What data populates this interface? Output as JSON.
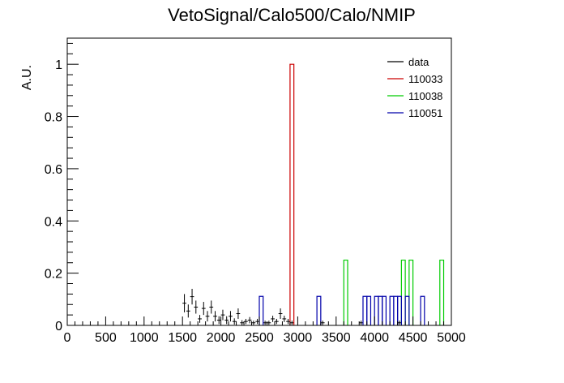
{
  "chart_data": {
    "type": "histogram",
    "title": "VetoSignal/Calo500/Calo/NMIP",
    "xlabel": "",
    "ylabel": "A.U.",
    "xlim": [
      0,
      5000
    ],
    "ylim": [
      0,
      1.1
    ],
    "bin_width": 50,
    "xticks": [
      0,
      500,
      1000,
      1500,
      2000,
      2500,
      3000,
      3500,
      4000,
      4500,
      5000
    ],
    "yticks": [
      0,
      0.2,
      0.4,
      0.6,
      0.8,
      1
    ],
    "grid": false,
    "legend_position": "top-right",
    "series": [
      {
        "name": "data",
        "color": "#000000",
        "style": "points-with-errors",
        "points": [
          {
            "x": 1525,
            "y": 0.085,
            "err": 0.035
          },
          {
            "x": 1575,
            "y": 0.055,
            "err": 0.025
          },
          {
            "x": 1625,
            "y": 0.11,
            "err": 0.03
          },
          {
            "x": 1675,
            "y": 0.07,
            "err": 0.025
          },
          {
            "x": 1725,
            "y": 0.025,
            "err": 0.015
          },
          {
            "x": 1775,
            "y": 0.065,
            "err": 0.025
          },
          {
            "x": 1825,
            "y": 0.035,
            "err": 0.02
          },
          {
            "x": 1875,
            "y": 0.07,
            "err": 0.025
          },
          {
            "x": 1925,
            "y": 0.035,
            "err": 0.02
          },
          {
            "x": 1975,
            "y": 0.02,
            "err": 0.015
          },
          {
            "x": 2025,
            "y": 0.04,
            "err": 0.02
          },
          {
            "x": 2075,
            "y": 0.02,
            "err": 0.015
          },
          {
            "x": 2125,
            "y": 0.035,
            "err": 0.02
          },
          {
            "x": 2175,
            "y": 0.015,
            "err": 0.012
          },
          {
            "x": 2225,
            "y": 0.045,
            "err": 0.02
          },
          {
            "x": 2275,
            "y": 0.01,
            "err": 0.01
          },
          {
            "x": 2325,
            "y": 0.015,
            "err": 0.01
          },
          {
            "x": 2375,
            "y": 0.02,
            "err": 0.012
          },
          {
            "x": 2425,
            "y": 0.01,
            "err": 0.008
          },
          {
            "x": 2475,
            "y": 0.015,
            "err": 0.01
          },
          {
            "x": 2575,
            "y": 0.01,
            "err": 0.008
          },
          {
            "x": 2625,
            "y": 0.01,
            "err": 0.008
          },
          {
            "x": 2675,
            "y": 0.025,
            "err": 0.012
          },
          {
            "x": 2725,
            "y": 0.015,
            "err": 0.01
          },
          {
            "x": 2775,
            "y": 0.045,
            "err": 0.02
          },
          {
            "x": 2825,
            "y": 0.025,
            "err": 0.012
          },
          {
            "x": 2875,
            "y": 0.015,
            "err": 0.01
          },
          {
            "x": 2925,
            "y": 0.01,
            "err": 0.008
          },
          {
            "x": 3325,
            "y": 0.01,
            "err": 0.008
          },
          {
            "x": 3825,
            "y": 0.01,
            "err": 0.008
          },
          {
            "x": 4325,
            "y": 0.01,
            "err": 0.008
          }
        ]
      },
      {
        "name": "110033",
        "color": "#cc0000",
        "style": "step",
        "bins": [
          {
            "x0": 2900,
            "x1": 2950,
            "y": 1.0
          }
        ]
      },
      {
        "name": "110038",
        "color": "#00cc00",
        "style": "step",
        "bins": [
          {
            "x0": 3600,
            "x1": 3650,
            "y": 0.25
          },
          {
            "x0": 4350,
            "x1": 4400,
            "y": 0.25
          },
          {
            "x0": 4450,
            "x1": 4500,
            "y": 0.25
          },
          {
            "x0": 4850,
            "x1": 4900,
            "y": 0.25
          }
        ]
      },
      {
        "name": "110051",
        "color": "#0000aa",
        "style": "step",
        "bins": [
          {
            "x0": 2500,
            "x1": 2550,
            "y": 0.111
          },
          {
            "x0": 3250,
            "x1": 3300,
            "y": 0.111
          },
          {
            "x0": 3850,
            "x1": 3900,
            "y": 0.111
          },
          {
            "x0": 3900,
            "x1": 3950,
            "y": 0.111
          },
          {
            "x0": 4000,
            "x1": 4050,
            "y": 0.111
          },
          {
            "x0": 4050,
            "x1": 4100,
            "y": 0.111
          },
          {
            "x0": 4100,
            "x1": 4150,
            "y": 0.111
          },
          {
            "x0": 4200,
            "x1": 4250,
            "y": 0.111
          },
          {
            "x0": 4250,
            "x1": 4300,
            "y": 0.111
          },
          {
            "x0": 4300,
            "x1": 4350,
            "y": 0.111
          },
          {
            "x0": 4400,
            "x1": 4450,
            "y": 0.111
          },
          {
            "x0": 4600,
            "x1": 4650,
            "y": 0.111
          }
        ]
      }
    ]
  }
}
